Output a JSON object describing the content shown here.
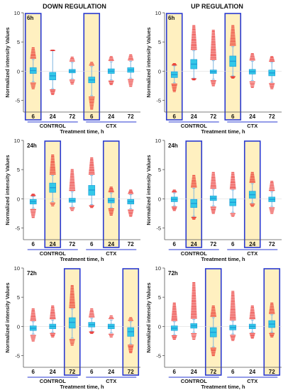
{
  "figure": {
    "column_titles": [
      "DOWN REGULATION",
      "UP REGULATION"
    ],
    "ylabel": "Normalized intensity Values",
    "xlabel": "Treatment time, h",
    "group_labels": [
      "CONTROL",
      "CTX"
    ],
    "time_labels": [
      "6",
      "24",
      "72",
      "6",
      "24",
      "72"
    ],
    "yticks": [
      "10",
      "5",
      "0",
      "-5"
    ],
    "colors": {
      "box": "#33c8e8",
      "median": "#1e9bd7",
      "outlier": "#e8201c",
      "highlight": "#fff0c0",
      "frame": "#2a3ad0",
      "whisker": "#7fb6e0"
    }
  },
  "chart_data": [
    {
      "type": "box",
      "column_title": "DOWN REGULATION",
      "time_label": "6h",
      "ylim": [
        -7,
        10
      ],
      "highlight": [
        0,
        3
      ],
      "categories": [
        "6",
        "24",
        "72",
        "6",
        "24",
        "72"
      ],
      "groups": [
        "CONTROL",
        "CTX"
      ],
      "median": [
        0.1,
        -0.8,
        0.0,
        -1.5,
        0.0,
        0.2
      ],
      "q1": [
        -0.4,
        -1.5,
        -0.3,
        -2.0,
        -0.4,
        -0.2
      ],
      "q3": [
        0.6,
        -0.2,
        0.3,
        -1.0,
        0.4,
        0.6
      ],
      "whisker_low": [
        -1.8,
        -3.0,
        -1.3,
        -4.2,
        -1.5,
        -1.2
      ],
      "whisker_high": [
        2.0,
        3.5,
        1.5,
        0.8,
        1.6,
        1.7
      ],
      "outlier_low": [
        -3.0,
        -4.0,
        -2.2,
        -6.5,
        -2.3,
        -2.6
      ],
      "outlier_high": [
        4.0,
        3.6,
        2.4,
        1.5,
        2.5,
        2.8
      ]
    },
    {
      "type": "box",
      "column_title": "UP REGULATION",
      "time_label": "6h",
      "ylim": [
        -7,
        10
      ],
      "highlight": [
        0,
        3
      ],
      "categories": [
        "6",
        "24",
        "72",
        "6",
        "24",
        "72"
      ],
      "groups": [
        "CONTROL",
        "CTX"
      ],
      "median": [
        -0.6,
        1.2,
        -0.1,
        1.7,
        -0.1,
        -0.3
      ],
      "q1": [
        -1.1,
        0.4,
        -0.4,
        0.8,
        -0.5,
        -0.8
      ],
      "q3": [
        -0.1,
        2.0,
        0.2,
        2.6,
        0.3,
        0.2
      ],
      "whisker_low": [
        -2.0,
        -1.2,
        -1.4,
        -0.8,
        -1.6,
        -1.9
      ],
      "whisker_high": [
        0.9,
        3.5,
        1.8,
        4.2,
        1.7,
        1.5
      ],
      "outlier_low": [
        -3.5,
        -1.5,
        -2.5,
        -1.2,
        -2.8,
        -3.0
      ],
      "outlier_high": [
        1.3,
        7.8,
        7.0,
        7.8,
        3.0,
        2.5
      ]
    },
    {
      "type": "box",
      "column_title": "DOWN REGULATION",
      "time_label": "24h",
      "ylim": [
        -7,
        10
      ],
      "highlight": [
        1,
        4
      ],
      "categories": [
        "6",
        "24",
        "72",
        "6",
        "24",
        "72"
      ],
      "groups": [
        "CONTROL",
        "CTX"
      ],
      "median": [
        -0.5,
        1.9,
        -0.3,
        1.5,
        -0.3,
        -0.5
      ],
      "q1": [
        -0.9,
        1.1,
        -0.6,
        0.6,
        -0.7,
        -0.9
      ],
      "q3": [
        -0.1,
        2.7,
        0.1,
        2.3,
        0.1,
        -0.1
      ],
      "whisker_low": [
        -1.6,
        -0.5,
        -1.3,
        -1.0,
        -1.5,
        -1.7
      ],
      "whisker_high": [
        0.4,
        4.0,
        1.2,
        4.0,
        1.0,
        0.7
      ],
      "outlier_low": [
        -3.2,
        -1.2,
        -2.0,
        -1.5,
        -2.8,
        -3.0
      ],
      "outlier_high": [
        0.8,
        7.5,
        5.0,
        7.0,
        2.0,
        1.5
      ]
    },
    {
      "type": "box",
      "column_title": "UP REGULATION",
      "time_label": "24h",
      "ylim": [
        -7,
        10
      ],
      "highlight": [
        1,
        4
      ],
      "categories": [
        "6",
        "24",
        "72",
        "6",
        "24",
        "72"
      ],
      "groups": [
        "CONTROL",
        "CTX"
      ],
      "median": [
        -0.1,
        -0.8,
        0.1,
        -0.6,
        0.7,
        -0.1
      ],
      "q1": [
        -0.5,
        -1.5,
        -0.3,
        -1.2,
        0.1,
        -0.5
      ],
      "q3": [
        0.3,
        -0.1,
        0.5,
        0.0,
        1.3,
        0.3
      ],
      "whisker_low": [
        -1.2,
        -3.0,
        -1.2,
        -2.3,
        -0.7,
        -1.3
      ],
      "whisker_high": [
        1.0,
        1.8,
        1.6,
        1.5,
        2.6,
        1.2
      ],
      "outlier_low": [
        -2.0,
        -3.5,
        -2.5,
        -3.0,
        -1.3,
        -2.5
      ],
      "outlier_high": [
        1.5,
        4.0,
        4.5,
        4.5,
        4.5,
        3.0
      ]
    },
    {
      "type": "box",
      "column_title": "DOWN REGULATION",
      "time_label": "72h",
      "ylim": [
        -7,
        10
      ],
      "highlight": [
        2,
        5
      ],
      "categories": [
        "6",
        "24",
        "72",
        "6",
        "24",
        "72"
      ],
      "groups": [
        "CONTROL",
        "CTX"
      ],
      "median": [
        -0.3,
        0.0,
        0.7,
        0.3,
        0.0,
        -0.9
      ],
      "q1": [
        -0.7,
        -0.4,
        -0.3,
        -0.1,
        -0.4,
        -1.7
      ],
      "q3": [
        0.1,
        0.4,
        1.5,
        0.7,
        0.4,
        -0.2
      ],
      "whisker_low": [
        -1.3,
        -1.0,
        -2.0,
        -0.8,
        -1.1,
        -3.0
      ],
      "whisker_high": [
        0.8,
        1.1,
        3.0,
        1.4,
        1.1,
        0.8
      ],
      "outlier_low": [
        -2.5,
        -1.8,
        -3.2,
        -1.2,
        -1.8,
        -4.5
      ],
      "outlier_high": [
        3.0,
        3.5,
        7.0,
        3.0,
        1.8,
        1.5
      ]
    },
    {
      "type": "box",
      "column_title": "UP REGULATION",
      "time_label": "72h",
      "ylim": [
        -7,
        10
      ],
      "highlight": [
        2,
        5
      ],
      "categories": [
        "6",
        "24",
        "72",
        "6",
        "24",
        "72"
      ],
      "groups": [
        "CONTROL",
        "CTX"
      ],
      "median": [
        -0.3,
        0.1,
        -1.0,
        -0.2,
        0.0,
        0.4
      ],
      "q1": [
        -0.7,
        -0.3,
        -1.8,
        -0.6,
        -0.4,
        -0.2
      ],
      "q3": [
        0.1,
        0.5,
        -0.2,
        0.2,
        0.4,
        1.0
      ],
      "whisker_low": [
        -1.4,
        -1.0,
        -3.5,
        -1.3,
        -1.0,
        -1.0
      ],
      "whisker_high": [
        0.8,
        1.2,
        1.5,
        0.9,
        1.1,
        2.0
      ],
      "outlier_low": [
        -2.2,
        -2.2,
        -5.0,
        -2.4,
        -2.0,
        -1.8
      ],
      "outlier_high": [
        4.0,
        7.5,
        3.5,
        6.0,
        3.5,
        4.0
      ]
    }
  ]
}
